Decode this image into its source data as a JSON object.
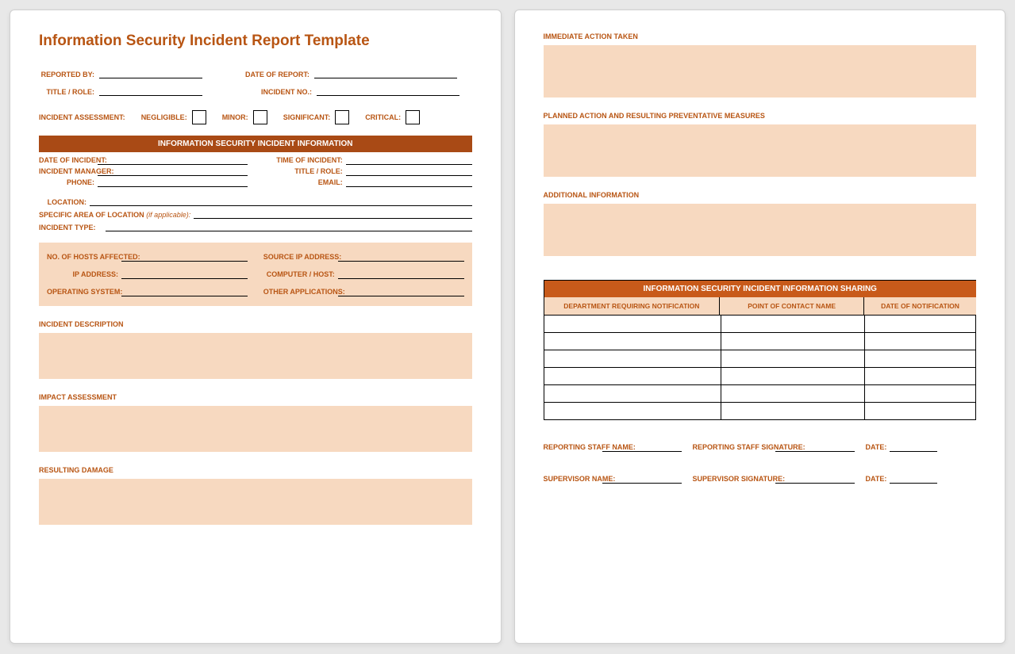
{
  "colors": {
    "brand": "#b85513",
    "bar_dark": "#a94a15",
    "bar_light": "#c85a1a",
    "shade": "#f7d9c0",
    "page_bg": "#ffffff",
    "body_bg": "#e8e8e8"
  },
  "title": "Information Security Incident Report Template",
  "header": {
    "reported_by": "REPORTED BY:",
    "date_of_report": "DATE OF REPORT:",
    "title_role": "TITLE / ROLE:",
    "incident_no": "INCIDENT NO.:"
  },
  "assessment": {
    "label": "INCIDENT ASSESSMENT:",
    "options": [
      "NEGLIGIBLE:",
      "MINOR:",
      "SIGNIFICANT:",
      "CRITICAL:"
    ]
  },
  "info_section": {
    "bar": "INFORMATION SECURITY INCIDENT INFORMATION",
    "date_of_incident": "DATE OF INCIDENT:",
    "time_of_incident": "TIME OF INCIDENT:",
    "incident_manager": "INCIDENT MANAGER:",
    "title_role": "TITLE / ROLE:",
    "phone": "PHONE:",
    "email": "EMAIL:",
    "location": "LOCATION:",
    "specific_area": "SPECIFIC AREA OF LOCATION",
    "if_applicable": "(if applicable):",
    "incident_type": "INCIDENT TYPE:"
  },
  "tech": {
    "hosts_affected": "NO. OF HOSTS AFFECTED:",
    "source_ip": "SOURCE IP ADDRESS:",
    "ip_address": "IP ADDRESS:",
    "computer_host": "COMPUTER / HOST:",
    "os": "OPERATING SYSTEM:",
    "other_apps": "OTHER APPLICATIONS:"
  },
  "sections": {
    "incident_description": "INCIDENT DESCRIPTION",
    "impact_assessment": "IMPACT ASSESSMENT",
    "resulting_damage": "RESULTING DAMAGE",
    "immediate_action": "IMMEDIATE ACTION TAKEN",
    "planned_action": "PLANNED ACTION AND RESULTING PREVENTATIVE MEASURES",
    "additional_info": "ADDITIONAL INFORMATION"
  },
  "sharing": {
    "bar": "INFORMATION SECURITY INCIDENT INFORMATION SHARING",
    "columns": [
      "DEPARTMENT REQUIRING NOTIFICATION",
      "POINT OF CONTACT NAME",
      "DATE OF NOTIFICATION"
    ],
    "row_count": 6
  },
  "signatures": {
    "reporting_name": "REPORTING STAFF NAME:",
    "reporting_sig": "REPORTING STAFF SIGNATURE:",
    "supervisor_name": "SUPERVISOR NAME:",
    "supervisor_sig": "SUPERVISOR SIGNATURE:",
    "date": "DATE:"
  }
}
